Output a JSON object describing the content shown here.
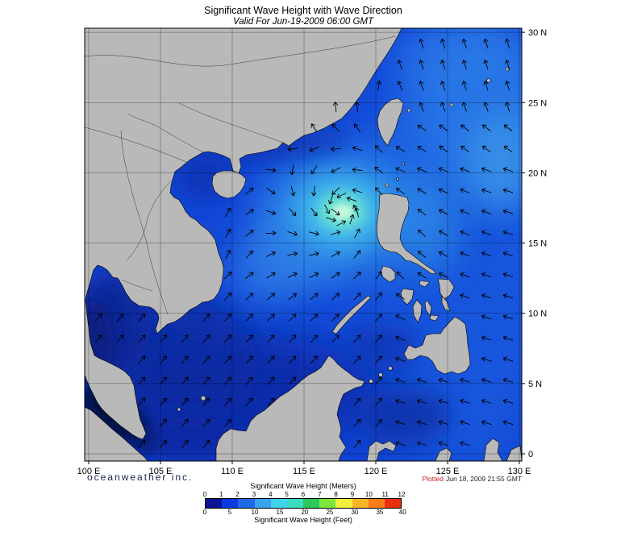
{
  "title": "Significant Wave Height with Wave Direction",
  "subtitle": "Valid For Jun-19-2009 06:00 GMT",
  "branding": "oceanweather inc.",
  "plotted_label": "Plotted",
  "plotted_date": "Jun 18, 2009 21:55 GMT",
  "axes": {
    "lat_ticks": [
      {
        "label": "30 N",
        "lat": 30
      },
      {
        "label": "25 N",
        "lat": 25
      },
      {
        "label": "20 N",
        "lat": 20
      },
      {
        "label": "15 N",
        "lat": 15
      },
      {
        "label": "10 N",
        "lat": 10
      },
      {
        "label": "5 N",
        "lat": 5
      },
      {
        "label": "0",
        "lat": 0
      }
    ],
    "lon_ticks": [
      {
        "label": "100 E",
        "lon": 100
      },
      {
        "label": "105 E",
        "lon": 105
      },
      {
        "label": "110 E",
        "lon": 110
      },
      {
        "label": "115 E",
        "lon": 115
      },
      {
        "label": "120 E",
        "lon": 120
      },
      {
        "label": "125 E",
        "lon": 125
      },
      {
        "label": "130 E",
        "lon": 130
      }
    ]
  },
  "legend": {
    "meters_title": "Significant Wave Height (Meters)",
    "feet_title": "Significant Wave Height (Feet)",
    "meters_ticks": [
      0,
      1,
      2,
      3,
      4,
      5,
      6,
      7,
      8,
      9,
      10,
      11,
      12
    ],
    "feet_ticks": [
      0,
      5,
      10,
      15,
      20,
      25,
      30,
      35,
      40
    ],
    "colors": [
      "#0a1494",
      "#0a3ae0",
      "#1e6ae8",
      "#38a4f0",
      "#40d4ec",
      "#3cdcc0",
      "#2ec85c",
      "#7ce83c",
      "#f0f03c",
      "#f8b428",
      "#f87c18",
      "#e83010"
    ]
  },
  "map_colors": {
    "land": "#b9b9b9",
    "ocean_base": "#1346d6",
    "storm_core": "#c6f7dc",
    "calm_dark": "#02093a"
  }
}
